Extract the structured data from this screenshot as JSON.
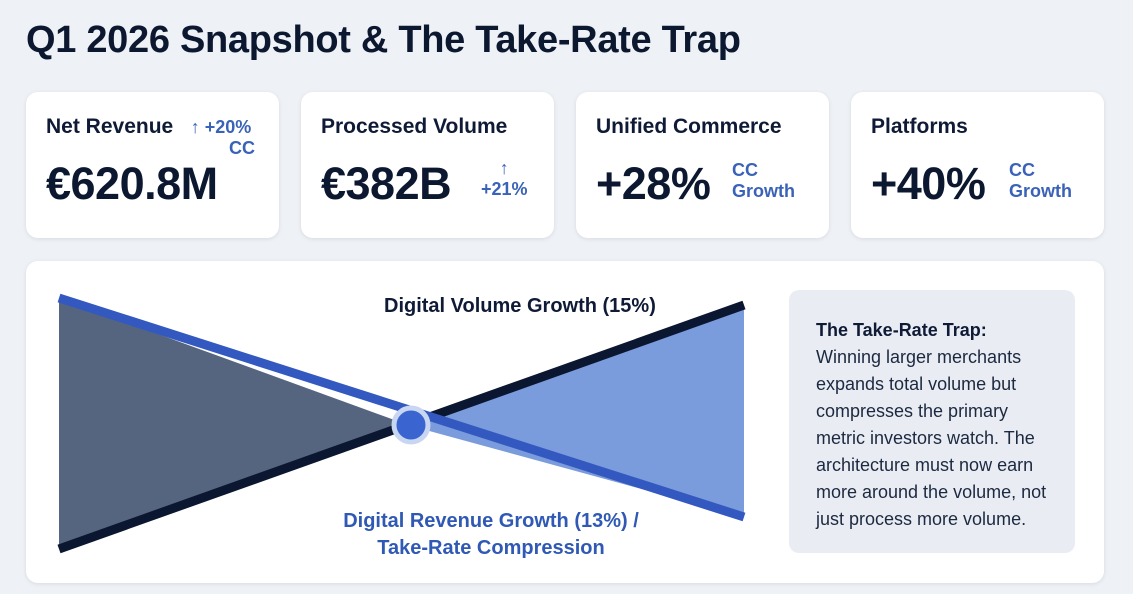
{
  "page": {
    "title": "Q1 2026 Snapshot & The Take-Rate Trap"
  },
  "kpis": [
    {
      "label": "Net Revenue",
      "value": "€620.8M",
      "delta_arrow": "↑",
      "delta_line1": "+20%",
      "delta_line2": "CC"
    },
    {
      "label": "Processed Volume",
      "value": "€382B",
      "delta_arrow": "↑",
      "delta_line1": "+21%"
    },
    {
      "label": "Unified Commerce",
      "value": "+28%",
      "delta_line1": "CC",
      "delta_line2": "Growth"
    },
    {
      "label": "Platforms",
      "value": "+40%",
      "delta_line1": "CC",
      "delta_line2": "Growth"
    }
  ],
  "diagram": {
    "volume_label": "Digital Volume Growth (15%)",
    "revenue_label_line1": "Digital Revenue Growth (13%) /",
    "revenue_label_line2": "Take-Rate Compression",
    "colors": {
      "left_fill": "#56657f",
      "right_fill": "#7a9bdc",
      "volume_line": "#0b1730",
      "revenue_line": "#3359c0",
      "center_node": "#3a65d0"
    }
  },
  "note": {
    "title": "The Take-Rate Trap:",
    "body": "Winning larger merchants expands total volume but compresses the primary metric investors watch. The architecture must now earn more around the volume, not just process more volume."
  }
}
